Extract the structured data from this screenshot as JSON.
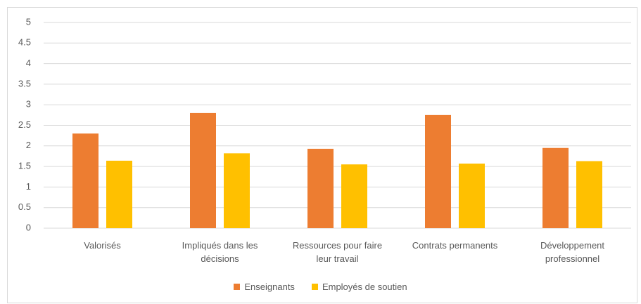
{
  "chart_data": {
    "type": "bar",
    "categories": [
      "Valorisés",
      "Impliqués dans les décisions",
      "Ressources pour faire leur travail",
      "Contrats permanents",
      "Développement professionnel"
    ],
    "series": [
      {
        "name": "Enseignants",
        "color": "#ed7d31",
        "values": [
          2.3,
          2.8,
          1.93,
          2.75,
          1.95
        ]
      },
      {
        "name": "Employés de soutien",
        "color": "#ffc000",
        "values": [
          1.64,
          1.82,
          1.55,
          1.57,
          1.63
        ]
      }
    ],
    "ylim": [
      0,
      5
    ],
    "yticks": [
      0,
      0.5,
      1,
      1.5,
      2,
      2.5,
      3,
      3.5,
      4,
      4.5,
      5
    ],
    "grid": true,
    "legend": "bottom"
  }
}
